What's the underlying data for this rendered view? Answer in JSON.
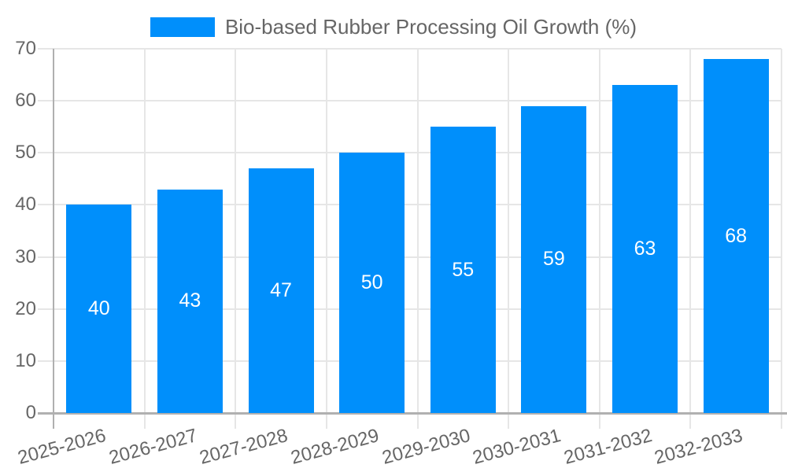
{
  "chart_data": {
    "type": "bar",
    "title": "Bio-based Rubber Processing Oil Growth (%)",
    "legend_label": "Bio-based Rubber Processing Oil Growth (%)",
    "legend_position": "top",
    "categories": [
      "2025-2026",
      "2026-2027",
      "2027-2028",
      "2028-2029",
      "2029-2030",
      "2030-2031",
      "2031-2032",
      "2032-2033"
    ],
    "values": [
      40,
      43,
      47,
      50,
      55,
      59,
      63,
      68
    ],
    "series": [
      {
        "name": "Bio-based Rubber Processing Oil Growth (%)",
        "values": [
          40,
          43,
          47,
          50,
          55,
          59,
          63,
          68
        ]
      }
    ],
    "bar_value_labels": [
      "40",
      "43",
      "47",
      "50",
      "55",
      "59",
      "63",
      "68"
    ],
    "xlabel": "",
    "ylabel": "",
    "ylim": [
      0,
      70
    ],
    "yticks": [
      0,
      10,
      20,
      30,
      40,
      50,
      60,
      70
    ],
    "grid": true,
    "x_label_rotation_deg": -15,
    "colors": {
      "bar": "#008FFB",
      "bar_label": "#FFFFFF",
      "grid": "#E6E6E6",
      "axis_line": "#B0B0B0",
      "tick_text": "#666666",
      "legend_text": "#666666",
      "background": "#FFFFFF"
    }
  }
}
